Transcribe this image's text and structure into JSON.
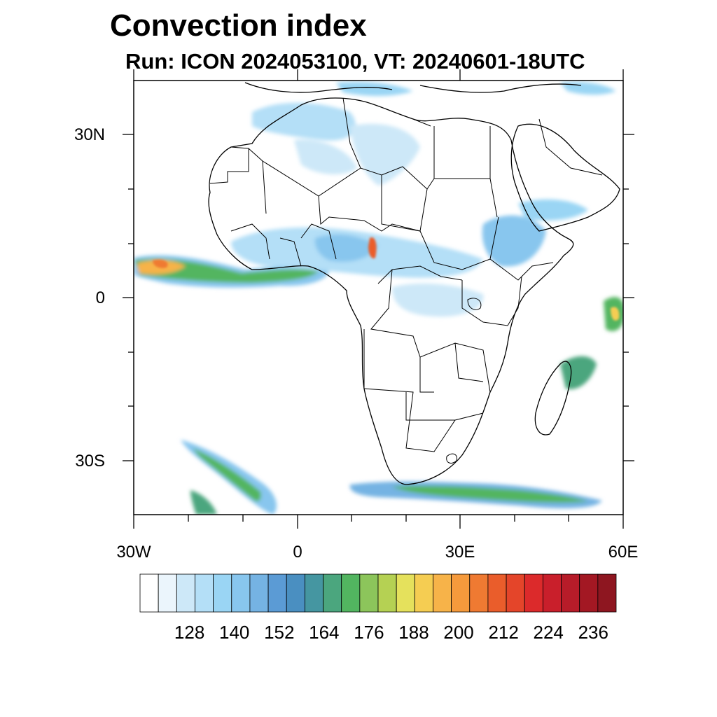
{
  "title": "Convection index",
  "subtitle": "Run: ICON 2024053100,  VT: 20240601-18UTC",
  "axes": {
    "lat_labels": [
      "30N",
      "0",
      "30S"
    ],
    "lon_labels": [
      "30W",
      "0",
      "30E",
      "60E"
    ]
  },
  "colorbar": {
    "labels": [
      "128",
      "140",
      "152",
      "164",
      "176",
      "188",
      "200",
      "212",
      "224",
      "236"
    ],
    "colors": [
      "#ffffff",
      "#ebf5fc",
      "#cde8f8",
      "#b4dff7",
      "#9ad5f4",
      "#88c6ee",
      "#75b3e3",
      "#5b9bd5",
      "#4a8fc1",
      "#4596a1",
      "#4ba67e",
      "#52b560",
      "#8cc55b",
      "#b5d153",
      "#e5e15c",
      "#f5cd52",
      "#f7b349",
      "#f59a3c",
      "#ef7a32",
      "#ea5d2b",
      "#e4452a",
      "#dc2a2b",
      "#c91f2b",
      "#b71c29",
      "#a31823",
      "#8e1620"
    ]
  },
  "colors": {
    "frame": "#000000",
    "coast": "#000000"
  }
}
